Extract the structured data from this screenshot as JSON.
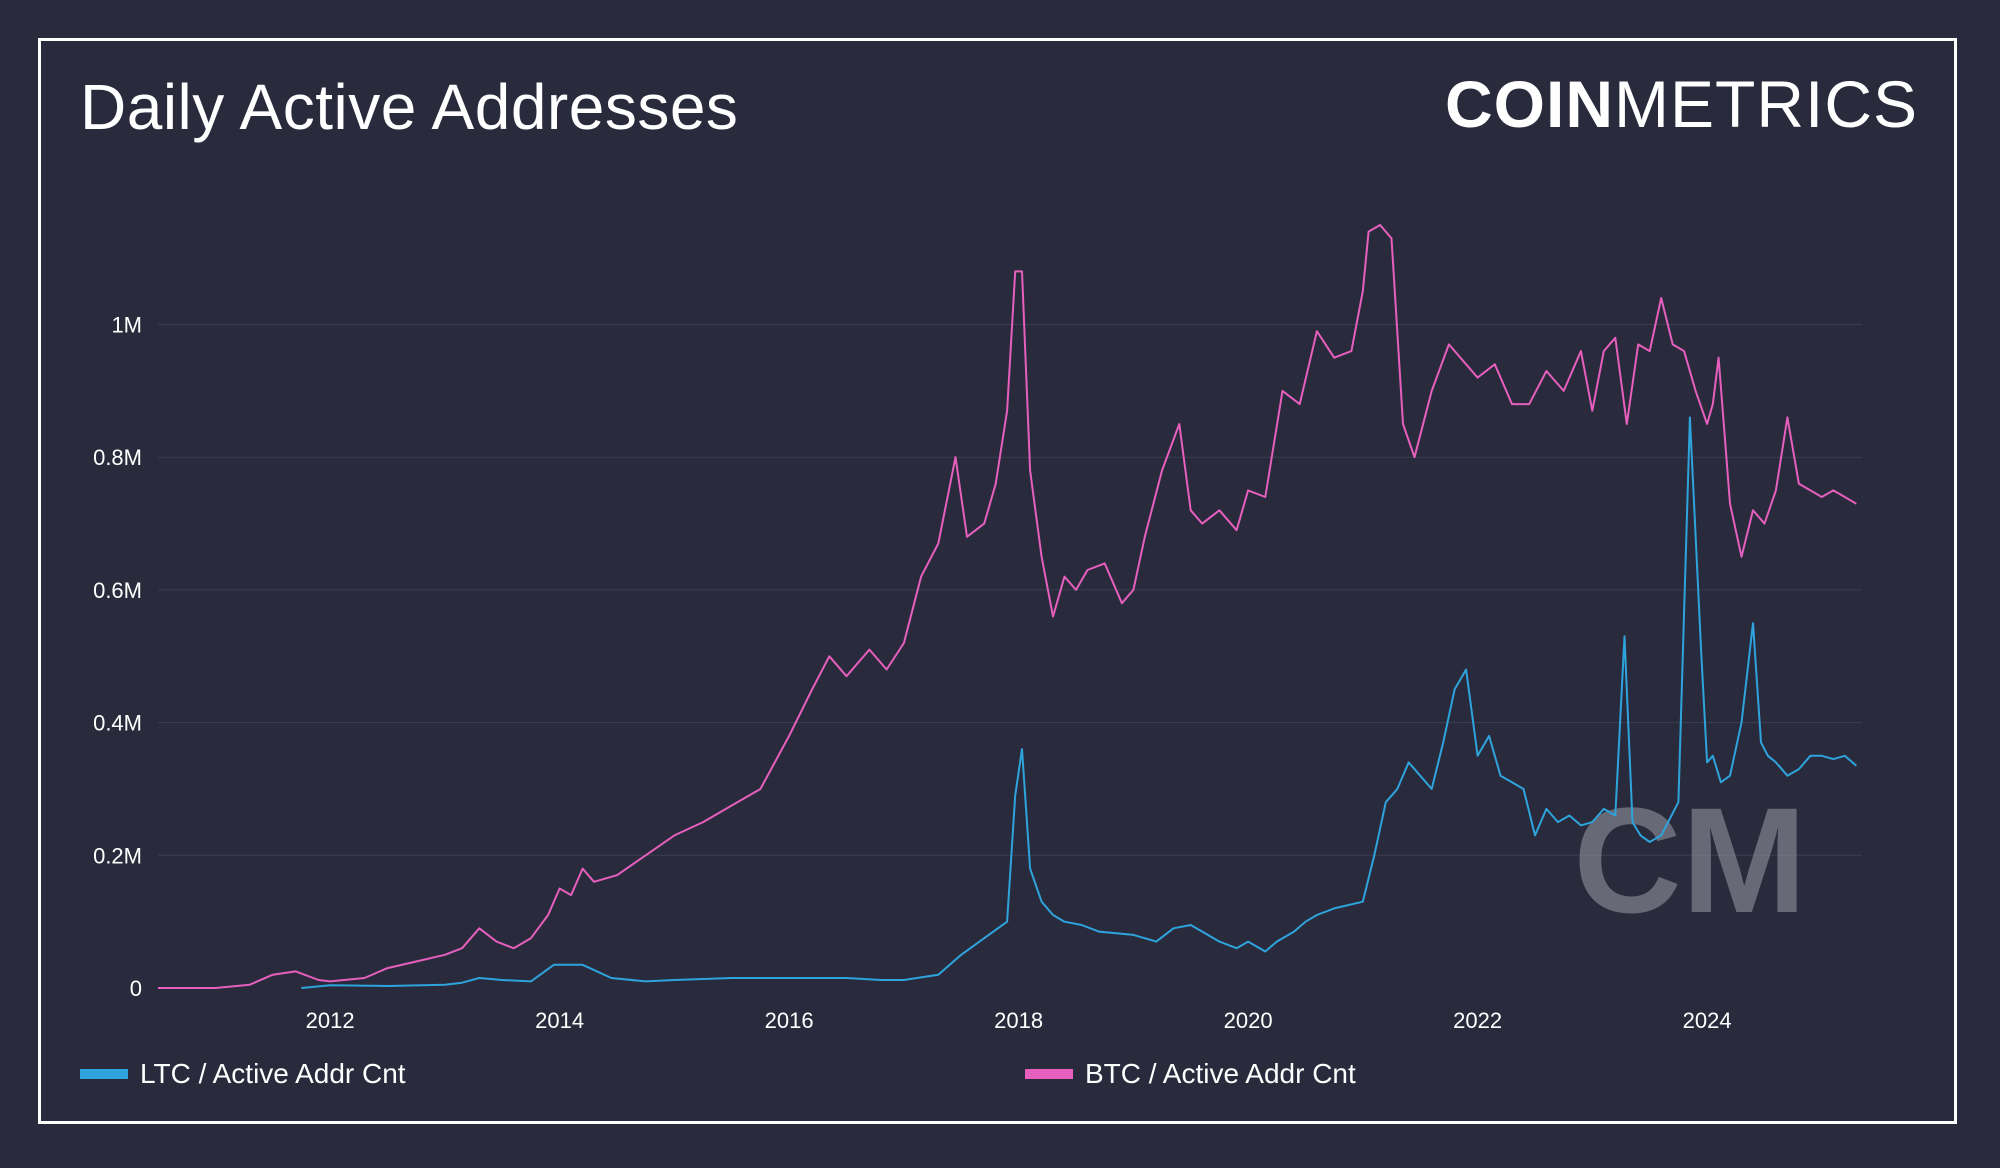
{
  "header": {
    "title": "Daily Active Addresses"
  },
  "logo": {
    "bold": "COIN",
    "light": "METRICS"
  },
  "watermark": {
    "text": "CM"
  },
  "colors": {
    "background": "#292b3c",
    "grid": "#3a3d50",
    "ltc": "#2ea3dc",
    "btc": "#e65fbe"
  },
  "chart_data": {
    "type": "line",
    "title": "Daily Active Addresses",
    "xlabel": "",
    "ylabel": "",
    "xlim": [
      2010.5,
      2025.35
    ],
    "ylim": [
      0,
      1150000
    ],
    "grid": true,
    "legend_position": "bottom",
    "x_ticks": [
      2012,
      2014,
      2016,
      2018,
      2020,
      2022,
      2024
    ],
    "x_tick_labels": [
      "2012",
      "2014",
      "2016",
      "2018",
      "2020",
      "2022",
      "2024"
    ],
    "y_ticks": [
      0,
      200000,
      400000,
      600000,
      800000,
      1000000
    ],
    "y_tick_labels": [
      "0",
      "0.2M",
      "0.4M",
      "0.6M",
      "0.8M",
      "1M"
    ],
    "series": [
      {
        "name": "LTC / Active Addr Cnt",
        "color": "#2ea3dc",
        "x": [
          2011.75,
          2012.0,
          2012.5,
          2013.0,
          2013.15,
          2013.3,
          2013.5,
          2013.75,
          2013.95,
          2014.2,
          2014.45,
          2014.75,
          2015.0,
          2015.5,
          2016.0,
          2016.5,
          2016.8,
          2017.0,
          2017.3,
          2017.5,
          2017.7,
          2017.9,
          2017.97,
          2018.03,
          2018.1,
          2018.2,
          2018.3,
          2018.4,
          2018.55,
          2018.7,
          2019.0,
          2019.2,
          2019.35,
          2019.5,
          2019.6,
          2019.75,
          2019.9,
          2020.0,
          2020.15,
          2020.25,
          2020.4,
          2020.5,
          2020.6,
          2020.75,
          2021.0,
          2021.1,
          2021.2,
          2021.3,
          2021.4,
          2021.5,
          2021.6,
          2021.7,
          2021.8,
          2021.9,
          2022.0,
          2022.1,
          2022.2,
          2022.3,
          2022.4,
          2022.5,
          2022.6,
          2022.7,
          2022.8,
          2022.9,
          2023.0,
          2023.1,
          2023.2,
          2023.28,
          2023.35,
          2023.42,
          2023.5,
          2023.6,
          2023.75,
          2023.85,
          2023.95,
          2024.0,
          2024.05,
          2024.12,
          2024.2,
          2024.3,
          2024.4,
          2024.47,
          2024.53,
          2024.6,
          2024.7,
          2024.8,
          2024.9,
          2025.0,
          2025.1,
          2025.2,
          2025.3
        ],
        "y": [
          0,
          4000,
          3000,
          5000,
          8000,
          15000,
          12000,
          10000,
          35000,
          35000,
          15000,
          10000,
          12000,
          15000,
          15000,
          15000,
          12000,
          12000,
          20000,
          50000,
          75000,
          100000,
          290000,
          360000,
          180000,
          130000,
          110000,
          100000,
          95000,
          85000,
          80000,
          70000,
          90000,
          95000,
          85000,
          70000,
          60000,
          70000,
          55000,
          70000,
          85000,
          100000,
          110000,
          120000,
          130000,
          200000,
          280000,
          300000,
          340000,
          320000,
          300000,
          370000,
          450000,
          480000,
          350000,
          380000,
          320000,
          310000,
          300000,
          230000,
          270000,
          250000,
          260000,
          245000,
          250000,
          270000,
          260000,
          530000,
          250000,
          230000,
          220000,
          230000,
          280000,
          860000,
          500000,
          340000,
          350000,
          310000,
          320000,
          400000,
          550000,
          370000,
          350000,
          340000,
          320000,
          330000,
          350000,
          350000,
          345000,
          350000,
          335000
        ]
      },
      {
        "name": "BTC / Active Addr Cnt",
        "color": "#e65fbe",
        "x": [
          2010.5,
          2011.0,
          2011.3,
          2011.5,
          2011.7,
          2011.9,
          2012.0,
          2012.3,
          2012.5,
          2012.75,
          2013.0,
          2013.15,
          2013.3,
          2013.45,
          2013.6,
          2013.75,
          2013.9,
          2014.0,
          2014.1,
          2014.2,
          2014.3,
          2014.5,
          2014.75,
          2015.0,
          2015.25,
          2015.5,
          2015.75,
          2016.0,
          2016.2,
          2016.35,
          2016.5,
          2016.7,
          2016.85,
          2017.0,
          2017.15,
          2017.3,
          2017.45,
          2017.55,
          2017.7,
          2017.8,
          2017.9,
          2017.97,
          2018.03,
          2018.1,
          2018.2,
          2018.3,
          2018.4,
          2018.5,
          2018.6,
          2018.75,
          2018.9,
          2019.0,
          2019.1,
          2019.25,
          2019.4,
          2019.5,
          2019.6,
          2019.75,
          2019.9,
          2020.0,
          2020.15,
          2020.3,
          2020.45,
          2020.6,
          2020.75,
          2020.9,
          2021.0,
          2021.05,
          2021.15,
          2021.25,
          2021.35,
          2021.45,
          2021.6,
          2021.75,
          2021.9,
          2022.0,
          2022.15,
          2022.3,
          2022.45,
          2022.6,
          2022.75,
          2022.9,
          2023.0,
          2023.1,
          2023.2,
          2023.3,
          2023.4,
          2023.5,
          2023.6,
          2023.7,
          2023.8,
          2023.9,
          2024.0,
          2024.05,
          2024.1,
          2024.2,
          2024.3,
          2024.4,
          2024.5,
          2024.6,
          2024.7,
          2024.8,
          2024.9,
          2025.0,
          2025.1,
          2025.2,
          2025.3
        ],
        "y": [
          0,
          0,
          5000,
          20000,
          25000,
          12000,
          10000,
          15000,
          30000,
          40000,
          50000,
          60000,
          90000,
          70000,
          60000,
          75000,
          110000,
          150000,
          140000,
          180000,
          160000,
          170000,
          200000,
          230000,
          250000,
          275000,
          300000,
          380000,
          450000,
          500000,
          470000,
          510000,
          480000,
          520000,
          620000,
          670000,
          800000,
          680000,
          700000,
          760000,
          870000,
          1080000,
          1080000,
          780000,
          650000,
          560000,
          620000,
          600000,
          630000,
          640000,
          580000,
          600000,
          680000,
          780000,
          850000,
          720000,
          700000,
          720000,
          690000,
          750000,
          740000,
          900000,
          880000,
          990000,
          950000,
          960000,
          1050000,
          1140000,
          1150000,
          1130000,
          850000,
          800000,
          900000,
          970000,
          940000,
          920000,
          940000,
          880000,
          880000,
          930000,
          900000,
          960000,
          870000,
          960000,
          980000,
          850000,
          970000,
          960000,
          1040000,
          970000,
          960000,
          900000,
          850000,
          880000,
          950000,
          730000,
          650000,
          720000,
          700000,
          750000,
          860000,
          760000,
          750000,
          740000,
          750000,
          740000,
          730000
        ]
      }
    ]
  }
}
